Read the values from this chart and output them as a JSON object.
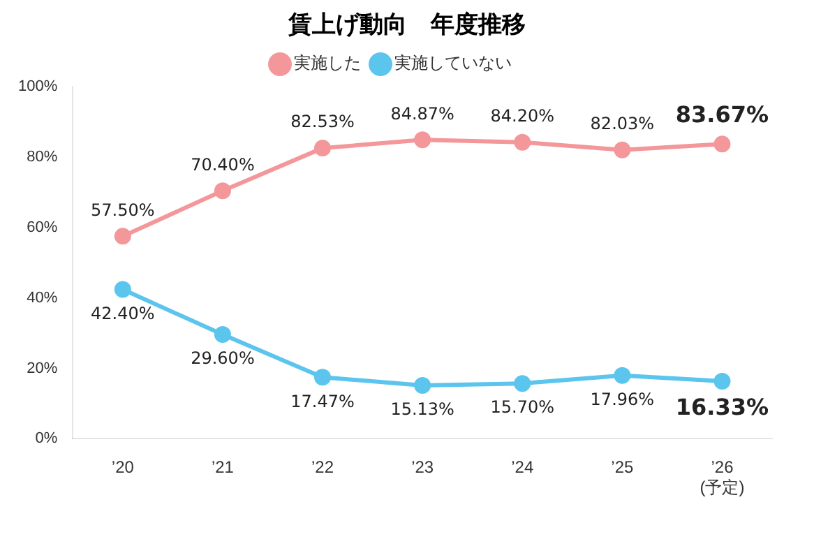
{
  "chart_data": {
    "type": "line",
    "title": "賃上げ動向　年度推移",
    "categories": [
      "’20",
      "’21",
      "’22",
      "’23",
      "’24",
      "’25",
      "’26\n(予定)"
    ],
    "series": [
      {
        "name": "実施した",
        "color": "#f4979a",
        "values": [
          57.5,
          70.4,
          82.53,
          84.87,
          84.2,
          82.03,
          83.67
        ],
        "value_labels": [
          "57.50%",
          "70.40%",
          "82.53%",
          "84.87%",
          "84.20%",
          "82.03%",
          "83.67%"
        ]
      },
      {
        "name": "実施していない",
        "color": "#5bc5ee",
        "values": [
          42.4,
          29.6,
          17.47,
          15.13,
          15.7,
          17.96,
          16.33
        ],
        "value_labels": [
          "42.40%",
          "29.60%",
          "17.47%",
          "15.13%",
          "15.70%",
          "17.96%",
          "16.33%"
        ]
      }
    ],
    "ylim": [
      0,
      100
    ],
    "yticks": [
      {
        "value": 0,
        "label": "0%"
      },
      {
        "value": 20,
        "label": "20%"
      },
      {
        "value": 40,
        "label": "40%"
      },
      {
        "value": 60,
        "label": "60%"
      },
      {
        "value": 80,
        "label": "80%"
      },
      {
        "value": 100,
        "label": "100%"
      }
    ],
    "grid": false,
    "legend": "top",
    "marker": "circle",
    "line_style": "solid"
  }
}
